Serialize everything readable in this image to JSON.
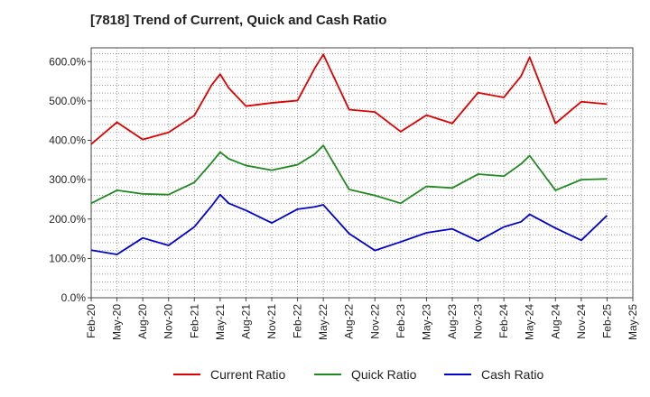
{
  "chart_data": {
    "type": "line",
    "title": "[7818]  Trend of Current, Quick and Cash Ratio",
    "xlabel": "",
    "ylabel": "",
    "ylim": [
      0,
      635
    ],
    "y_ticks": [
      0,
      100,
      200,
      300,
      400,
      500,
      600
    ],
    "y_tick_labels": [
      "0.0%",
      "100.0%",
      "200.0%",
      "300.0%",
      "400.0%",
      "500.0%",
      "600.0%"
    ],
    "x_tick_labels": [
      "Feb-20",
      "May-20",
      "Aug-20",
      "Nov-20",
      "Feb-21",
      "May-21",
      "Aug-21",
      "Nov-21",
      "Feb-22",
      "May-22",
      "Aug-22",
      "Nov-22",
      "Feb-23",
      "May-23",
      "Aug-23",
      "Nov-23",
      "Feb-24",
      "May-24",
      "Aug-24",
      "Nov-24",
      "Feb-25",
      "May-25"
    ],
    "grid": true,
    "legend_position": "bottom",
    "series": [
      {
        "name": "Current Ratio",
        "color": "#dd0000",
        "values": [
          390,
          446,
          402,
          420,
          463,
          540,
          568,
          533,
          487,
          495,
          501,
          583,
          618,
          478,
          472,
          422,
          464,
          443,
          521,
          509,
          563,
          611,
          443,
          498,
          492
        ]
      },
      {
        "name": "Quick Ratio",
        "color": "#228822",
        "values": [
          240,
          273,
          264,
          262,
          293,
          343,
          370,
          353,
          336,
          324,
          338,
          365,
          387,
          275,
          260,
          240,
          283,
          279,
          314,
          309,
          340,
          361,
          273,
          300,
          302
        ]
      },
      {
        "name": "Cash Ratio",
        "color": "#0000cc",
        "values": [
          121,
          110,
          152,
          133,
          180,
          233,
          262,
          240,
          222,
          190,
          225,
          231,
          236,
          163,
          120,
          142,
          165,
          175,
          144,
          180,
          193,
          212,
          177,
          146,
          209
        ]
      }
    ],
    "x_positions": [
      0,
      3,
      6,
      9,
      12,
      14,
      15,
      16,
      18,
      21,
      24,
      26,
      27,
      30,
      33,
      36,
      39,
      42,
      45,
      48,
      50,
      51,
      54,
      57,
      60
    ]
  }
}
